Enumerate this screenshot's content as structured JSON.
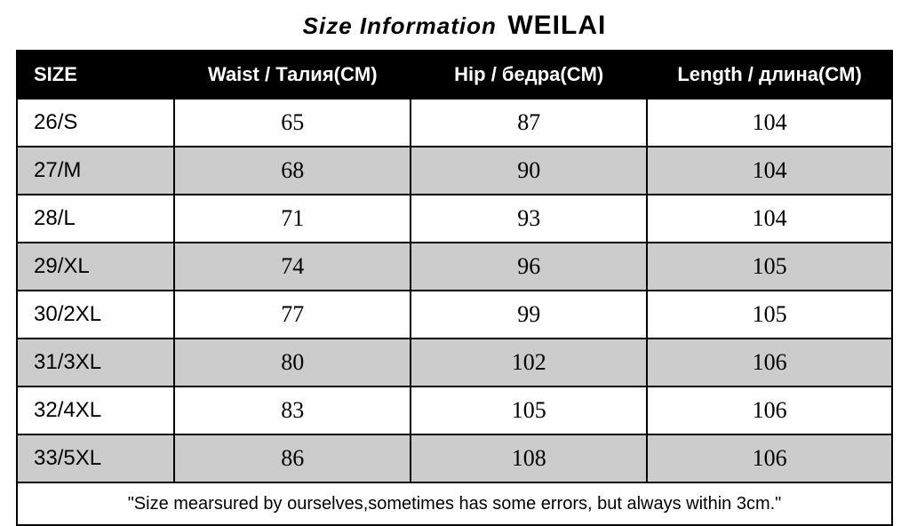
{
  "title": {
    "label": "Size Information",
    "brand": "WEILAI",
    "label_fontsize": 26,
    "brand_fontsize": 30,
    "label_color": "#000000",
    "brand_color": "#000000"
  },
  "table": {
    "type": "table",
    "header_bg": "#000000",
    "header_fg": "#ffffff",
    "border_color": "#000000",
    "row_bg_even": "#ffffff",
    "row_bg_odd": "#cccccc",
    "header_fontsize": 22,
    "size_cell_fontsize": 24,
    "value_cell_fontsize": 26,
    "col_widths_pct": [
      18,
      27,
      27,
      28
    ],
    "columns": [
      "SIZE",
      "Waist / Талия(CM)",
      "Hip / бедра(CM)",
      "Length / длина(CM)"
    ],
    "rows": [
      [
        "26/S",
        "65",
        "87",
        "104"
      ],
      [
        "27/M",
        "68",
        "90",
        "104"
      ],
      [
        "28/L",
        "71",
        "93",
        "104"
      ],
      [
        "29/XL",
        "74",
        "96",
        "105"
      ],
      [
        "30/2XL",
        "77",
        "99",
        "105"
      ],
      [
        "31/3XL",
        "80",
        "102",
        "106"
      ],
      [
        "32/4XL",
        "83",
        "105",
        "106"
      ],
      [
        "33/5XL",
        "86",
        "108",
        "106"
      ]
    ],
    "footnote": "\"Size mearsured by ourselves,sometimes has some errors, but always within 3cm.\""
  }
}
